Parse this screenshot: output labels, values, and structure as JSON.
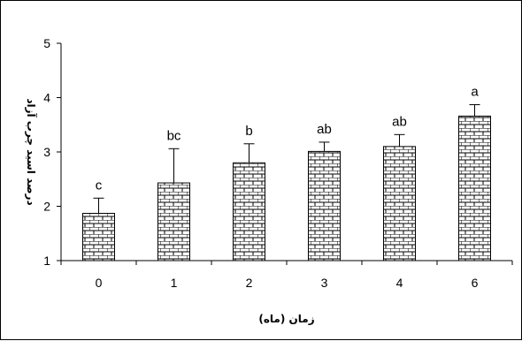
{
  "chart_data": {
    "type": "bar",
    "categories": [
      "0",
      "1",
      "2",
      "3",
      "4",
      "6"
    ],
    "values": [
      1.87,
      2.43,
      2.8,
      3.01,
      3.1,
      3.66
    ],
    "error_upper": [
      2.15,
      3.06,
      3.15,
      3.18,
      3.32,
      3.87
    ],
    "significance_labels": [
      "c",
      "bc",
      "b",
      "ab",
      "ab",
      "a"
    ],
    "xlabel": "زمان (ماه)",
    "ylabel": "درصد اسید چرب آزاد",
    "ylim": [
      1,
      5
    ],
    "yticks": [
      "1",
      "2",
      "3",
      "4",
      "5"
    ],
    "grid": false,
    "bar_pattern": "brick",
    "bar_fill": "#ffffff",
    "bar_pattern_color": "#000000"
  }
}
